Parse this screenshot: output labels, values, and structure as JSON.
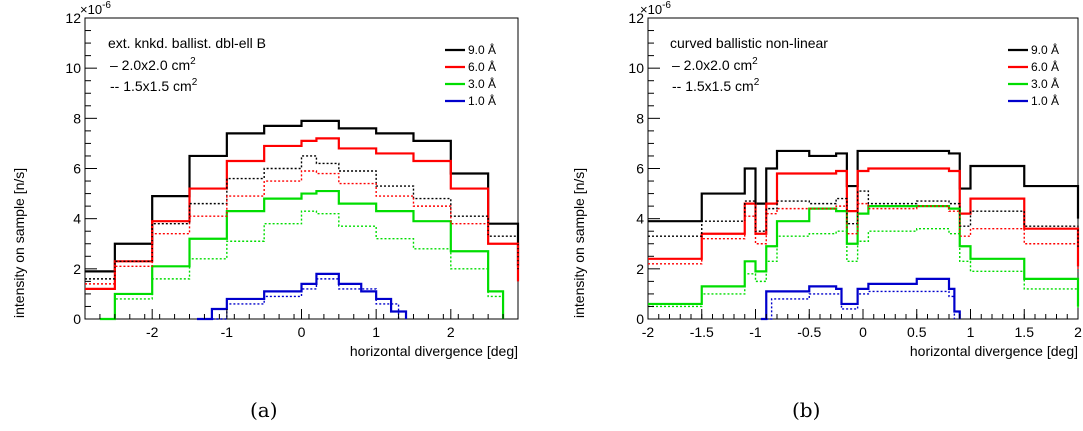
{
  "figures": [
    {
      "caption": "(a)",
      "chart_data": {
        "type": "line",
        "title": "ext. knkd. ballist. dbl-ell B",
        "xlabel": "horizontal divergence [deg]",
        "ylabel": "intensity on sample [n/s]",
        "y_exponent_label": "×10",
        "y_exponent_power": "-6",
        "xlim": [
          -2.9,
          2.9
        ],
        "ylim": [
          0,
          12
        ],
        "xticks": [
          -2,
          -1,
          0,
          1,
          2
        ],
        "xtick_labels": [
          "-2",
          "-1",
          "0",
          "1",
          "2"
        ],
        "yticks": [
          0,
          2,
          4,
          6,
          8,
          10,
          12
        ],
        "ytick_labels": [
          "0",
          "2",
          "4",
          "6",
          "8",
          "10",
          "12"
        ],
        "legend_position": "top-right",
        "legend": [
          {
            "label": "9.0 Å",
            "color": "#000000"
          },
          {
            "label": "6.0 Å",
            "color": "#ff0000"
          },
          {
            "label": "3.0 Å",
            "color": "#00dd00"
          },
          {
            "label": "1.0 Å",
            "color": "#0000cc"
          }
        ],
        "linestyle_legend": [
          {
            "label": "– 2.0x2.0 cm",
            "sup": "2",
            "style": "solid"
          },
          {
            "label": "-- 1.5x1.5 cm",
            "sup": "2",
            "style": "dashed"
          }
        ],
        "series": [
          {
            "wavelength": "9.0 Å",
            "color": "#000000",
            "style": "solid",
            "x": [
              -2.9,
              -2.5,
              -2,
              -1.5,
              -1,
              -0.5,
              0,
              0.2,
              0.5,
              1,
              1.5,
              2,
              2.5,
              2.9
            ],
            "y": [
              1.9,
              3.0,
              4.9,
              6.5,
              7.4,
              7.7,
              7.9,
              7.9,
              7.6,
              7.4,
              7.1,
              5.8,
              3.8,
              2.1
            ]
          },
          {
            "wavelength": "6.0 Å",
            "color": "#ff0000",
            "style": "solid",
            "x": [
              -2.9,
              -2.5,
              -2,
              -1.5,
              -1,
              -0.5,
              0,
              0.2,
              0.5,
              1,
              1.5,
              2,
              2.5,
              2.9
            ],
            "y": [
              1.2,
              2.3,
              3.9,
              5.2,
              6.3,
              6.9,
              7.1,
              7.2,
              6.8,
              6.6,
              6.3,
              5.2,
              3.0,
              1.5
            ]
          },
          {
            "wavelength": "3.0 Å",
            "color": "#00dd00",
            "style": "solid",
            "x": [
              -2.7,
              -2.5,
              -2,
              -1.5,
              -1,
              -0.5,
              0,
              0.2,
              0.5,
              1,
              1.5,
              2,
              2.5,
              2.7
            ],
            "y": [
              0,
              1.0,
              2.1,
              3.2,
              4.3,
              4.8,
              5.0,
              5.1,
              4.6,
              4.3,
              3.9,
              2.7,
              1.1,
              0
            ]
          },
          {
            "wavelength": "1.0 Å",
            "color": "#0000cc",
            "style": "solid",
            "x": [
              -1.4,
              -1.2,
              -1,
              -0.5,
              0,
              0.2,
              0.5,
              0.8,
              1,
              1.2,
              1.4
            ],
            "y": [
              0,
              0.4,
              0.8,
              1.1,
              1.4,
              1.8,
              1.4,
              1.1,
              0.8,
              0.3,
              0
            ]
          },
          {
            "wavelength": "9.0 Å",
            "color": "#000000",
            "style": "dashed",
            "x": [
              -2.9,
              -2.5,
              -2,
              -1.5,
              -1,
              -0.5,
              0,
              0.2,
              0.5,
              1,
              1.5,
              2,
              2.5,
              2.9
            ],
            "y": [
              1.6,
              2.3,
              3.8,
              4.6,
              5.6,
              6.0,
              6.5,
              6.2,
              5.9,
              5.3,
              4.8,
              4.1,
              3.3,
              1.9
            ]
          },
          {
            "wavelength": "6.0 Å",
            "color": "#ff0000",
            "style": "dashed",
            "x": [
              -2.9,
              -2.5,
              -2,
              -1.5,
              -1,
              -0.5,
              0,
              0.2,
              0.5,
              1,
              1.5,
              2,
              2.5,
              2.9
            ],
            "y": [
              1.4,
              2.1,
              3.4,
              4.1,
              4.9,
              5.5,
              5.9,
              5.8,
              5.4,
              4.9,
              4.5,
              3.8,
              3.0,
              1.6
            ]
          },
          {
            "wavelength": "3.0 Å",
            "color": "#00dd00",
            "style": "dashed",
            "x": [
              -2.7,
              -2.5,
              -2,
              -1.5,
              -1,
              -0.5,
              0,
              0.2,
              0.5,
              1,
              1.5,
              2,
              2.5,
              2.7
            ],
            "y": [
              0,
              0.8,
              1.6,
              2.4,
              3.1,
              3.8,
              4.3,
              4.2,
              3.7,
              3.2,
              2.8,
              2.0,
              0.9,
              0
            ]
          },
          {
            "wavelength": "1.0 Å",
            "color": "#0000cc",
            "style": "dashed",
            "x": [
              -1.3,
              -1,
              -0.5,
              0,
              0.2,
              0.5,
              1,
              1.3
            ],
            "y": [
              0,
              0.6,
              0.9,
              1.2,
              1.6,
              1.2,
              0.6,
              0
            ]
          }
        ]
      }
    },
    {
      "caption": "(b)",
      "chart_data": {
        "type": "line",
        "title": "curved ballistic non-linear",
        "xlabel": "horizontal divergence [deg]",
        "ylabel": "intensity on sample [n/s]",
        "y_exponent_label": "×10",
        "y_exponent_power": "-6",
        "xlim": [
          -2,
          2
        ],
        "ylim": [
          0,
          12
        ],
        "xticks": [
          -2,
          -1.5,
          -1,
          -0.5,
          0,
          0.5,
          1,
          1.5,
          2
        ],
        "xtick_labels": [
          "-2",
          "-1.5",
          "-1",
          "-0.5",
          "0",
          "0.5",
          "1",
          "1.5",
          "2"
        ],
        "yticks": [
          0,
          2,
          4,
          6,
          8,
          10,
          12
        ],
        "ytick_labels": [
          "0",
          "2",
          "4",
          "6",
          "8",
          "10",
          "12"
        ],
        "legend_position": "top-right",
        "legend": [
          {
            "label": "9.0 Å",
            "color": "#000000"
          },
          {
            "label": "6.0 Å",
            "color": "#ff0000"
          },
          {
            "label": "3.0 Å",
            "color": "#00dd00"
          },
          {
            "label": "1.0 Å",
            "color": "#0000cc"
          }
        ],
        "linestyle_legend": [
          {
            "label": "– 2.0x2.0 cm",
            "sup": "2",
            "style": "solid"
          },
          {
            "label": "-- 1.5x1.5 cm",
            "sup": "2",
            "style": "dashed"
          }
        ],
        "series": [
          {
            "wavelength": "9.0 Å",
            "color": "#000000",
            "style": "solid",
            "x": [
              -2,
              -1.5,
              -1.1,
              -1.0,
              -0.9,
              -0.8,
              -0.5,
              -0.25,
              -0.15,
              -0.05,
              0.05,
              0.5,
              0.8,
              0.9,
              1.0,
              1.5,
              2
            ],
            "y": [
              3.9,
              5.0,
              6.0,
              4.6,
              6.0,
              6.7,
              6.5,
              6.6,
              5.3,
              6.7,
              6.7,
              6.7,
              6.6,
              5.2,
              6.1,
              5.3,
              4.0
            ]
          },
          {
            "wavelength": "6.0 Å",
            "color": "#ff0000",
            "style": "solid",
            "x": [
              -2,
              -1.5,
              -1.1,
              -1.0,
              -0.9,
              -0.8,
              -0.5,
              -0.25,
              -0.15,
              -0.05,
              0.05,
              0.5,
              0.8,
              0.9,
              1.0,
              1.5,
              2
            ],
            "y": [
              2.4,
              3.4,
              4.6,
              3.4,
              4.6,
              5.8,
              5.8,
              5.9,
              4.3,
              5.9,
              6.0,
              6.0,
              5.9,
              4.2,
              4.8,
              3.6,
              2.1
            ]
          },
          {
            "wavelength": "3.0 Å",
            "color": "#00dd00",
            "style": "solid",
            "x": [
              -2,
              -1.5,
              -1.1,
              -1.0,
              -0.9,
              -0.8,
              -0.5,
              -0.25,
              -0.15,
              -0.05,
              0.05,
              0.5,
              0.8,
              0.9,
              1.0,
              1.5,
              2
            ],
            "y": [
              0.6,
              1.3,
              2.3,
              1.9,
              2.9,
              3.9,
              4.4,
              4.3,
              3.0,
              4.2,
              4.5,
              4.5,
              4.4,
              2.9,
              2.4,
              1.6,
              0.5
            ]
          },
          {
            "wavelength": "1.0 Å",
            "color": "#0000cc",
            "style": "solid",
            "x": [
              -0.95,
              -0.9,
              -0.5,
              -0.25,
              -0.2,
              -0.15,
              -0.05,
              0.05,
              0.5,
              0.8,
              0.85,
              0.9
            ],
            "y": [
              0,
              1.1,
              1.3,
              1.2,
              0.6,
              0.6,
              1.2,
              1.4,
              1.6,
              1.2,
              0.3,
              0
            ]
          },
          {
            "wavelength": "9.0 Å",
            "color": "#000000",
            "style": "dashed",
            "x": [
              -2,
              -1.5,
              -1.1,
              -1.0,
              -0.9,
              -0.8,
              -0.5,
              -0.25,
              -0.15,
              -0.05,
              0.05,
              0.5,
              0.8,
              0.9,
              1.0,
              1.5,
              2
            ],
            "y": [
              3.3,
              3.9,
              4.7,
              3.5,
              4.4,
              4.7,
              4.6,
              4.8,
              3.8,
              5.1,
              4.6,
              4.7,
              4.6,
              3.7,
              4.3,
              3.7,
              2.8
            ]
          },
          {
            "wavelength": "6.0 Å",
            "color": "#ff0000",
            "style": "dashed",
            "x": [
              -2,
              -1.5,
              -1.1,
              -1.0,
              -0.9,
              -0.8,
              -0.5,
              -0.25,
              -0.15,
              -0.05,
              0.05,
              0.5,
              0.8,
              0.9,
              1.0,
              1.5,
              2
            ],
            "y": [
              2.2,
              3.2,
              4.1,
              3.0,
              4.2,
              4.4,
              4.4,
              4.5,
              3.4,
              4.6,
              4.4,
              4.5,
              4.3,
              3.3,
              3.6,
              3.0,
              1.9
            ]
          },
          {
            "wavelength": "3.0 Å",
            "color": "#00dd00",
            "style": "dashed",
            "x": [
              -2,
              -1.5,
              -1.1,
              -1.0,
              -0.9,
              -0.8,
              -0.5,
              -0.25,
              -0.15,
              -0.05,
              0.05,
              0.5,
              0.8,
              0.9,
              1.0,
              1.5,
              2
            ],
            "y": [
              0.5,
              1.0,
              1.8,
              1.5,
              2.3,
              3.3,
              3.4,
              3.5,
              2.3,
              3.1,
              3.5,
              3.6,
              3.4,
              2.3,
              1.9,
              1.2,
              0.4
            ]
          },
          {
            "wavelength": "1.0 Å",
            "color": "#0000cc",
            "style": "dashed",
            "x": [
              -0.9,
              -0.85,
              -0.5,
              -0.25,
              -0.2,
              -0.15,
              -0.05,
              0.05,
              0.5,
              0.8,
              0.85
            ],
            "y": [
              0,
              0.8,
              1.0,
              1.0,
              0.4,
              0.4,
              1.0,
              1.1,
              1.1,
              0.9,
              0
            ]
          }
        ]
      }
    }
  ]
}
